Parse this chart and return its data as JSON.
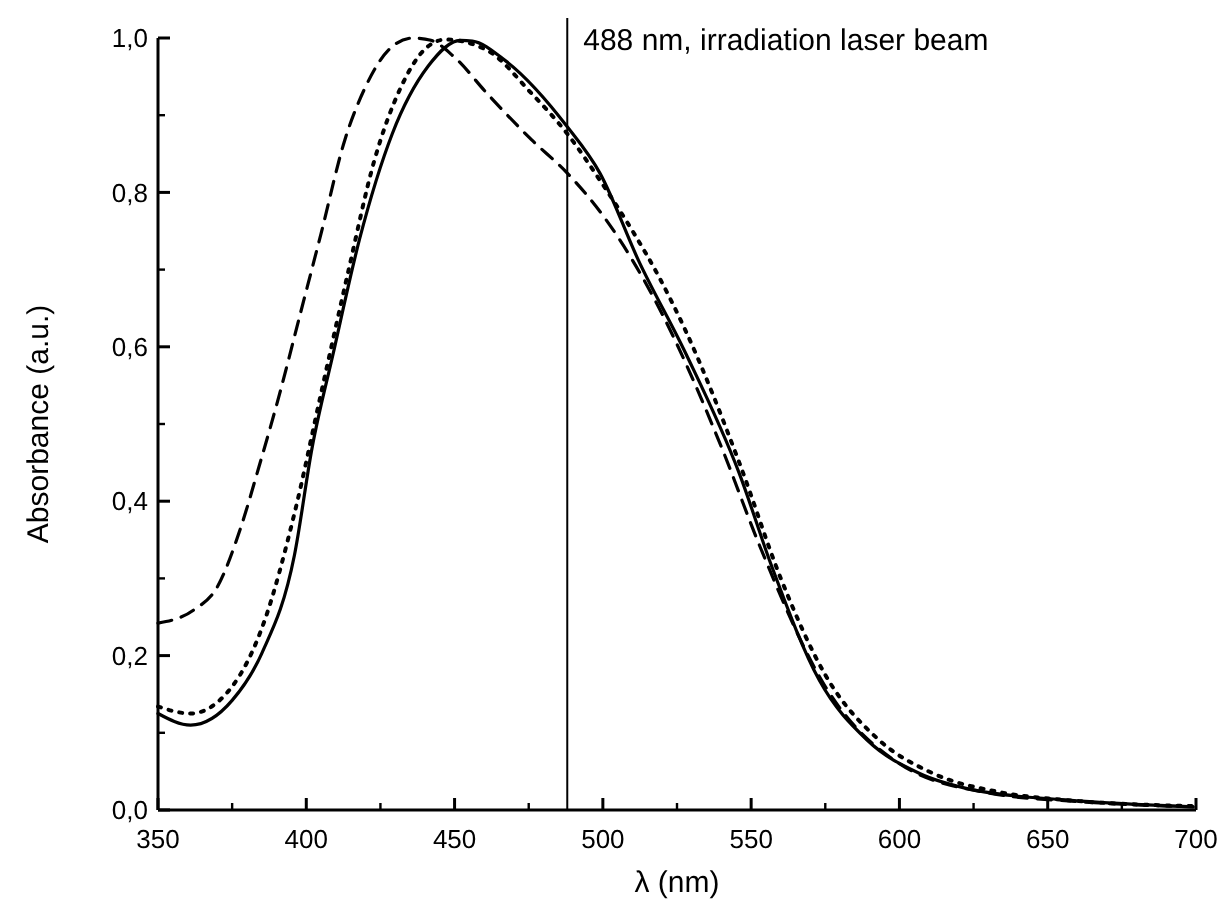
{
  "chart_data": {
    "type": "line",
    "xlabel": "λ (nm)",
    "ylabel": "Absorbance (a.u.)",
    "xlim": [
      350,
      700
    ],
    "ylim": [
      0,
      1.0
    ],
    "xticks": [
      350,
      400,
      450,
      500,
      550,
      600,
      650,
      700
    ],
    "yticks": [
      {
        "value": 0,
        "label": "0,0"
      },
      {
        "value": 0.2,
        "label": "0,2"
      },
      {
        "value": 0.4,
        "label": "0,4"
      },
      {
        "value": 0.6,
        "label": "0,6"
      },
      {
        "value": 0.8,
        "label": "0,8"
      },
      {
        "value": 1.0,
        "label": "1,0"
      }
    ],
    "grid": false,
    "ref_lines": [
      {
        "axis": "x",
        "value": 488,
        "label": "488 nm, irradiation laser beam",
        "color": "#000000"
      }
    ],
    "series": [
      {
        "color": "#000000",
        "line_style": "solid",
        "x": [
          350,
          361,
          375,
          385,
          396,
          402,
          409,
          418,
          429,
          441,
          452,
          456,
          467,
          488,
          499,
          512,
          528,
          546,
          557,
          573,
          589,
          607,
          625,
          656,
          699
        ],
        "values": [
          0.125,
          0.11,
          0.142,
          0.203,
          0.33,
          0.47,
          0.59,
          0.74,
          0.876,
          0.963,
          0.997,
          0.996,
          0.971,
          0.885,
          0.825,
          0.712,
          0.591,
          0.436,
          0.315,
          0.168,
          0.091,
          0.047,
          0.026,
          0.013,
          0.004
        ]
      },
      {
        "color": "#000000",
        "line_style": "dashed",
        "x": [
          350,
          362,
          370,
          378,
          384,
          391,
          398,
          405,
          413,
          420,
          429,
          436,
          442,
          450,
          461,
          476,
          488,
          501,
          519,
          540,
          553,
          575,
          600,
          630,
          660,
          699
        ],
        "values": [
          0.242,
          0.259,
          0.289,
          0.367,
          0.444,
          0.539,
          0.643,
          0.747,
          0.868,
          0.937,
          0.989,
          1.0,
          0.997,
          0.975,
          0.928,
          0.868,
          0.825,
          0.765,
          0.65,
          0.47,
          0.341,
          0.16,
          0.06,
          0.022,
          0.011,
          0.004
        ]
      },
      {
        "color": "#000000",
        "line_style": "dotted",
        "x": [
          350,
          361,
          375,
          386,
          396,
          405,
          414,
          423,
          432,
          441,
          447,
          461,
          476,
          488,
          500,
          510,
          519,
          528,
          546,
          560,
          575,
          593,
          611,
          634,
          656,
          699
        ],
        "values": [
          0.134,
          0.125,
          0.16,
          0.246,
          0.384,
          0.54,
          0.695,
          0.842,
          0.937,
          0.989,
          0.998,
          0.984,
          0.928,
          0.876,
          0.81,
          0.75,
          0.69,
          0.62,
          0.45,
          0.3,
          0.175,
          0.091,
          0.048,
          0.023,
          0.013,
          0.005
        ]
      }
    ]
  }
}
